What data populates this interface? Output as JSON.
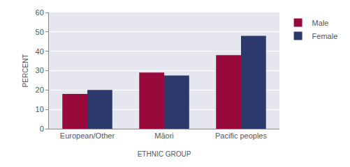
{
  "chart_data": {
    "type": "bar",
    "x_label": "ETHNIC GROUP",
    "y_label": "PERCENT",
    "categories": [
      "European/Other",
      "Māori",
      "Pacific peoples"
    ],
    "series": [
      {
        "name": "Male",
        "color": "#990a3c",
        "values": [
          18,
          29,
          38
        ]
      },
      {
        "name": "Female",
        "color": "#2b3a6b",
        "values": [
          20,
          27.5,
          48
        ]
      }
    ],
    "ylim": [
      0,
      60
    ],
    "yticks": [
      0,
      10,
      20,
      30,
      40,
      50,
      60
    ],
    "grid": true,
    "legend": "top right"
  }
}
